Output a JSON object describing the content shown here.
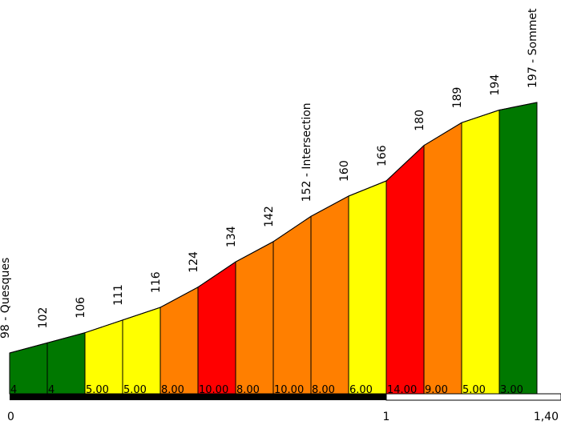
{
  "chart_data": {
    "type": "area",
    "title": "",
    "xlabel": "",
    "ylabel": "",
    "x_ticks": [
      "0",
      "1",
      "1,40"
    ],
    "xlim": [
      0,
      1.4
    ],
    "ylim": [
      98,
      197
    ],
    "colors": {
      "green": "#007800",
      "yellow": "#ffff00",
      "orange": "#ff7f00",
      "red": "#ff0000",
      "outline": "#000000",
      "scale_bar": "#000000"
    },
    "points": [
      {
        "x": 0.0,
        "elev": 98,
        "label": "98 - Quesques"
      },
      {
        "x": 0.1,
        "elev": 102,
        "label": "102"
      },
      {
        "x": 0.2,
        "elev": 106,
        "label": "106"
      },
      {
        "x": 0.3,
        "elev": 111,
        "label": "111"
      },
      {
        "x": 0.4,
        "elev": 116,
        "label": "116"
      },
      {
        "x": 0.5,
        "elev": 124,
        "label": "124"
      },
      {
        "x": 0.6,
        "elev": 134,
        "label": "134"
      },
      {
        "x": 0.7,
        "elev": 142,
        "label": "142"
      },
      {
        "x": 0.8,
        "elev": 152,
        "label": "152 - Intersection"
      },
      {
        "x": 0.9,
        "elev": 160,
        "label": "160"
      },
      {
        "x": 1.0,
        "elev": 166,
        "label": "166"
      },
      {
        "x": 1.1,
        "elev": 180,
        "label": "180"
      },
      {
        "x": 1.2,
        "elev": 189,
        "label": "189"
      },
      {
        "x": 1.3,
        "elev": 194,
        "label": "194"
      },
      {
        "x": 1.4,
        "elev": 197,
        "label": "197 - Sommet"
      }
    ],
    "segments": [
      {
        "grade": "4",
        "color": "green"
      },
      {
        "grade": "4",
        "color": "green"
      },
      {
        "grade": "5.00",
        "color": "yellow"
      },
      {
        "grade": "5.00",
        "color": "yellow"
      },
      {
        "grade": "8.00",
        "color": "orange"
      },
      {
        "grade": "10.00",
        "color": "red"
      },
      {
        "grade": "8.00",
        "color": "orange"
      },
      {
        "grade": "10.00",
        "color": "orange"
      },
      {
        "grade": "8.00",
        "color": "orange"
      },
      {
        "grade": "6.00",
        "color": "yellow"
      },
      {
        "grade": "14.00",
        "color": "red"
      },
      {
        "grade": "9.00",
        "color": "orange"
      },
      {
        "grade": "5.00",
        "color": "yellow"
      },
      {
        "grade": "3.00",
        "color": "green"
      }
    ]
  }
}
